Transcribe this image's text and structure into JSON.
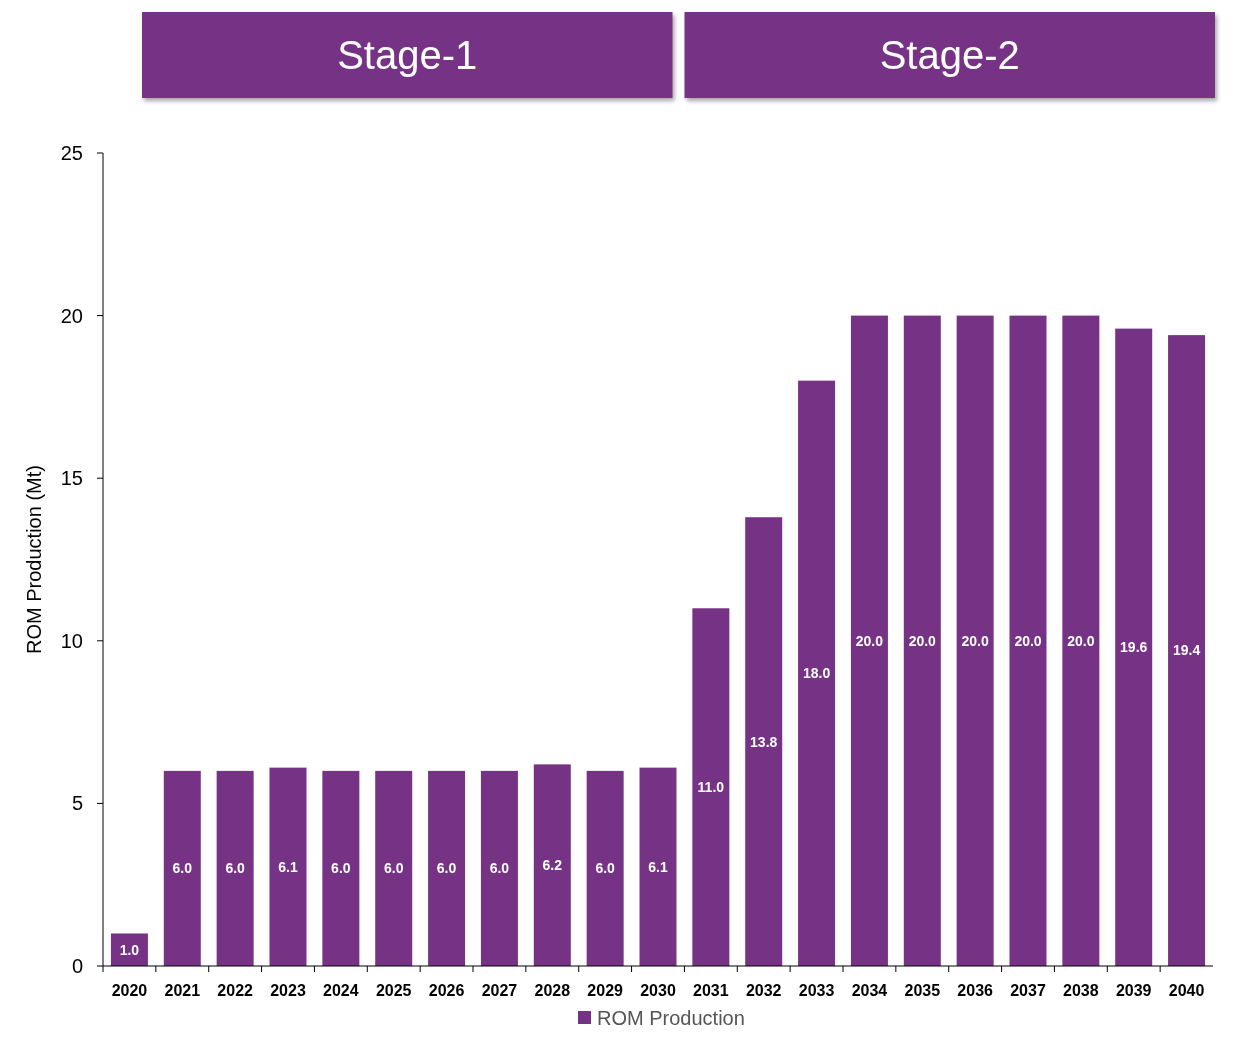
{
  "chart_data": {
    "type": "bar",
    "ylabel": "ROM Production (Mt)",
    "annotations": [
      "Stage-1",
      "Stage-2"
    ],
    "categories": [
      "2020",
      "2021",
      "2022",
      "2023",
      "2024",
      "2025",
      "2026",
      "2027",
      "2028",
      "2029",
      "2030",
      "2031",
      "2032",
      "2033",
      "2034",
      "2035",
      "2036",
      "2037",
      "2038",
      "2039",
      "2040"
    ],
    "series": [
      {
        "name": "ROM Production",
        "color": "#763385",
        "values": [
          1.0,
          6.0,
          6.0,
          6.1,
          6.0,
          6.0,
          6.0,
          6.0,
          6.2,
          6.0,
          6.1,
          11.0,
          13.8,
          18.0,
          20.0,
          20.0,
          20.0,
          20.0,
          20.0,
          19.6,
          19.4
        ],
        "value_labels": [
          "1.0",
          "6.0",
          "6.0",
          "6.1",
          "6.0",
          "6.0",
          "6.0",
          "6.0",
          "6.2",
          "6.0",
          "6.1",
          "11.0",
          "13.8",
          "18.0",
          "20.0",
          "20.0",
          "20.0",
          "20.0",
          "20.0",
          "19.6",
          "19.4"
        ]
      }
    ],
    "ylim": [
      0,
      25
    ],
    "yticks": [
      0,
      5,
      10,
      15,
      20,
      25
    ],
    "grid": false,
    "legend": "bottom"
  }
}
